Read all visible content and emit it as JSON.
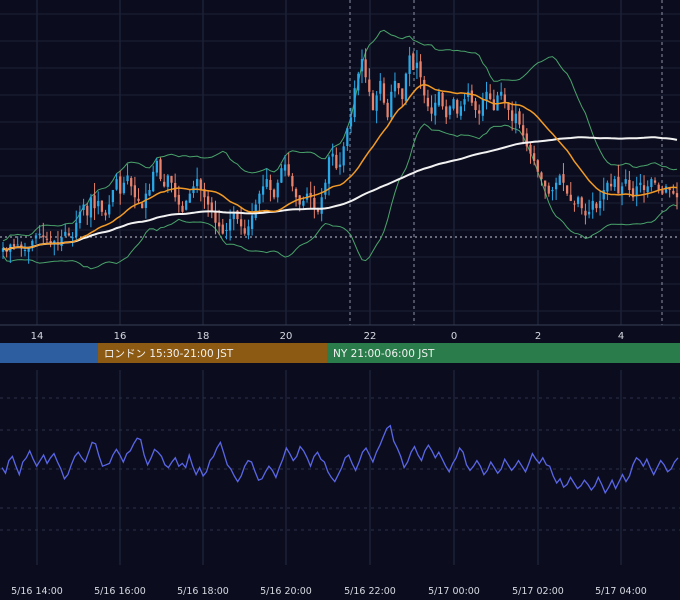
{
  "chart_data": [
    {
      "type": "candlestick",
      "title": "",
      "x_ticks": [
        "14",
        "16",
        "18",
        "20",
        "22",
        "0",
        "2",
        "4"
      ],
      "colors": {
        "up": "#2aa7e6",
        "down": "#e8826b",
        "ma_short": "#f29a26",
        "ma_long": "#f2f2f2",
        "bollinger": "#4aa36a",
        "background": "#0b0d1f"
      },
      "close": [
        1.0,
        0.9,
        1.1,
        1.05,
        1.1,
        1.0,
        0.95,
        1.0,
        1.2,
        1.35,
        1.4,
        1.3,
        1.25,
        1.15,
        1.2,
        1.1,
        1.3,
        1.45,
        1.35,
        1.3,
        1.7,
        2.0,
        2.2,
        1.9,
        2.4,
        2.1,
        2.3,
        2.0,
        1.9,
        2.2,
        2.6,
        2.9,
        2.5,
        2.8,
        3.0,
        2.7,
        2.4,
        2.3,
        2.1,
        2.5,
        2.6,
        3.1,
        3.4,
        2.9,
        2.7,
        3.0,
        2.8,
        2.4,
        2.2,
        2.0,
        2.3,
        2.5,
        2.7,
        2.9,
        2.6,
        2.4,
        2.2,
        2.0,
        1.7,
        1.6,
        1.4,
        1.5,
        1.8,
        2.0,
        1.8,
        1.6,
        1.4,
        1.6,
        1.9,
        2.2,
        2.5,
        2.7,
        2.9,
        2.6,
        2.4,
        2.8,
        3.2,
        3.3,
        3.0,
        2.7,
        2.4,
        2.2,
        2.3,
        2.5,
        2.4,
        2.1,
        2.0,
        2.4,
        2.8,
        3.5,
        3.6,
        3.2,
        3.3,
        3.8,
        4.3,
        4.6,
        5.4,
        5.8,
        6.2,
        5.7,
        5.3,
        4.8,
        5.2,
        5.6,
        5.0,
        4.6,
        5.3,
        5.6,
        5.4,
        5.1,
        5.8,
        6.3,
        5.9,
        6.1,
        5.7,
        5.2,
        4.9,
        4.7,
        5.0,
        5.3,
        4.9,
        4.6,
        4.9,
        5.1,
        4.7,
        4.9,
        5.1,
        5.3,
        5.0,
        4.8,
        4.7,
        5.1,
        5.3,
        5.1,
        4.8,
        5.2,
        5.3,
        5.0,
        4.8,
        4.5,
        4.7,
        4.4,
        4.1,
        3.8,
        3.6,
        3.4,
        3.1,
        2.9,
        2.7,
        2.5,
        2.6,
        2.8,
        3.0,
        2.8,
        2.5,
        2.3,
        2.2,
        2.4,
        2.1,
        1.9,
        2.0,
        2.3,
        2.1,
        2.3,
        2.6,
        2.8,
        2.7,
        2.9,
        2.5,
        2.7,
        2.9,
        2.6,
        2.4,
        2.7,
        2.8,
        2.6,
        2.7,
        2.9,
        2.8,
        2.6,
        2.5,
        2.7,
        2.6,
        2.5,
        2.4
      ]
    },
    {
      "type": "line",
      "series": [
        {
          "name": "",
          "color": "#5a66e6"
        }
      ],
      "values": [
        0.1,
        -0.3,
        0.6,
        0.9,
        0.2,
        -0.4,
        0.5,
        0.8,
        1.3,
        0.7,
        0.2,
        0.6,
        1.0,
        0.4,
        0.8,
        1.1,
        0.5,
        0.0,
        -0.7,
        -0.4,
        0.3,
        0.9,
        1.2,
        0.8,
        0.5,
        1.2,
        1.9,
        1.8,
        0.9,
        0.2,
        0.3,
        0.4,
        1.0,
        1.4,
        1.0,
        0.5,
        1.1,
        1.3,
        1.8,
        2.2,
        2.1,
        1.0,
        0.3,
        0.8,
        1.4,
        1.2,
        0.9,
        0.3,
        0.1,
        0.5,
        0.8,
        0.2,
        0.4,
        0.1,
        1.0,
        0.2,
        -0.4,
        0.1,
        -0.5,
        -0.2,
        0.6,
        0.9,
        1.5,
        1.9,
        1.1,
        0.3,
        0.0,
        -0.5,
        -0.9,
        -0.5,
        0.2,
        0.6,
        0.5,
        -0.2,
        -0.8,
        -0.7,
        -0.2,
        0.2,
        -0.1,
        -0.6,
        0.1,
        0.7,
        1.5,
        1.1,
        0.6,
        0.9,
        1.6,
        1.3,
        0.8,
        0.2,
        0.9,
        1.2,
        0.7,
        0.5,
        -0.2,
        -0.6,
        -0.9,
        -0.4,
        0.1,
        0.8,
        1.0,
        0.4,
        -0.1,
        0.5,
        1.2,
        1.5,
        1.0,
        0.5,
        1.2,
        1.7,
        2.3,
        2.9,
        3.1,
        2.0,
        1.5,
        0.9,
        0.1,
        0.5,
        1.2,
        1.6,
        1.0,
        0.6,
        1.3,
        1.7,
        1.3,
        0.8,
        1.2,
        0.7,
        0.2,
        -0.2,
        0.4,
        0.8,
        1.5,
        1.2,
        0.3,
        -0.1,
        0.2,
        0.6,
        0.2,
        -0.4,
        -0.1,
        0.5,
        0.1,
        -0.3,
        0.0,
        0.7,
        0.3,
        -0.1,
        0.2,
        0.6,
        0.2,
        -0.2,
        0.4,
        1.1,
        0.7,
        0.4,
        0.8,
        0.3,
        0.2,
        -0.5,
        -1.0,
        -0.7,
        -1.3,
        -1.1,
        -0.6,
        -1.0,
        -1.4,
        -1.2,
        -0.8,
        -1.1,
        -1.5,
        -1.2,
        -0.6,
        -1.1,
        -1.7,
        -1.3,
        -0.8,
        -1.4,
        -0.9,
        -0.4,
        -0.9,
        -0.5,
        0.3,
        0.8,
        0.6,
        0.2,
        0.7,
        0.1,
        -0.4,
        0.1,
        0.6,
        0.3,
        -0.2,
        0.0,
        0.5,
        0.8
      ]
    }
  ],
  "sessions": [
    {
      "label": "",
      "color": "#2c5ea0"
    },
    {
      "label": "ロンドン 15:30-21:00 JST",
      "color": "#8c5a13"
    },
    {
      "label": "NY 21:00-06:00 JST",
      "color": "#2a7d4a"
    }
  ],
  "bottom_ticks": [
    "5/16 14:00",
    "5/16 16:00",
    "5/16 18:00",
    "5/16 20:00",
    "5/16 22:00",
    "5/17 00:00",
    "5/17 02:00",
    "5/17 04:00"
  ]
}
